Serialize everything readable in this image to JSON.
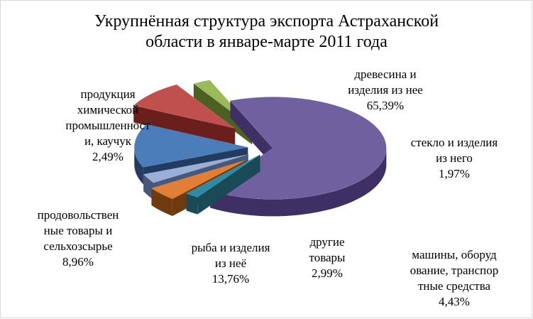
{
  "chart_data": {
    "type": "pie",
    "style": "3d-exploded",
    "title_lines": [
      "Укрупнённая структура экспорта Астраханской",
      "области в январе-марте 2011 года"
    ],
    "slices": [
      {
        "name_lines": [
          "древесина и",
          "изделия из нее"
        ],
        "pct_label": "65,39%",
        "value": 65.39,
        "color": "#7160A0",
        "side_color": "#3E2F65"
      },
      {
        "name_lines": [
          "стекло и изделия",
          "из него"
        ],
        "pct_label": "1,97%",
        "value": 1.97,
        "color": "#2E8BA3",
        "side_color": "#1B4A57"
      },
      {
        "name_lines": [
          "машины, оборуд",
          "ование, транспор",
          "тные средства"
        ],
        "pct_label": "4,43%",
        "value": 4.43,
        "color": "#E07F35",
        "side_color": "#6E3A0E"
      },
      {
        "name_lines": [
          "другие",
          "товары"
        ],
        "pct_label": "2,99%",
        "value": 2.99,
        "color": "#9AAFD8",
        "side_color": "#49577A"
      },
      {
        "name_lines": [
          "рыба и изделия",
          "из неё"
        ],
        "pct_label": "13,76%",
        "value": 13.76,
        "color": "#4A7DBA",
        "side_color": "#223B61"
      },
      {
        "name_lines": [
          "продовольствен",
          "ные товары и",
          "сельхозсырье"
        ],
        "pct_label": "8,96%",
        "value": 8.96,
        "color": "#C0504D",
        "side_color": "#6B1F1D"
      },
      {
        "name_lines": [
          "продукция",
          "химической",
          "промышленност",
          "и, каучук"
        ],
        "pct_label": "2,49%",
        "value": 2.49,
        "color": "#9BBB59",
        "side_color": "#4C6023"
      }
    ]
  }
}
